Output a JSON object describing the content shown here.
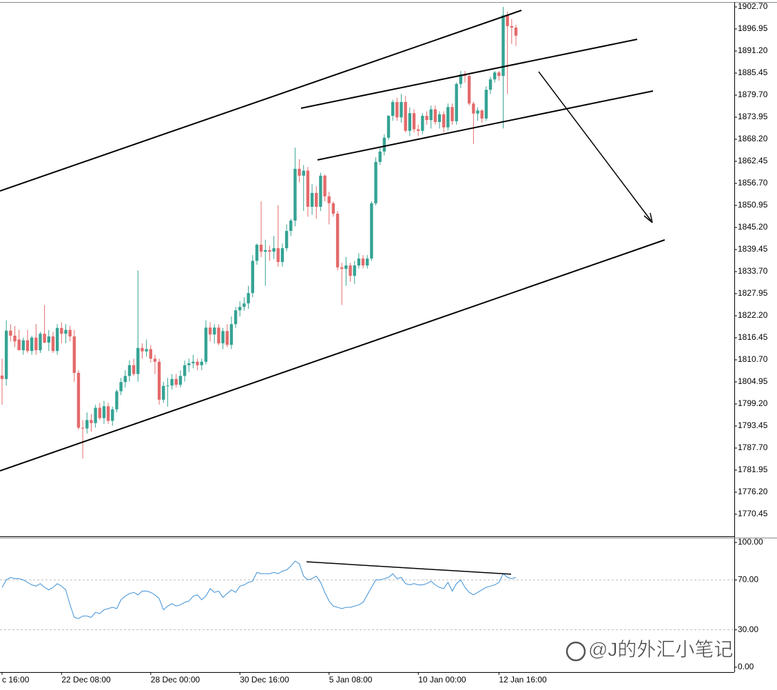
{
  "chart_data": [
    {
      "type": "candlestick",
      "categories": [
        "c 16:00",
        null,
        null,
        null,
        null,
        null,
        null,
        null,
        null,
        null,
        null,
        null,
        null,
        null,
        "22 Dec 08:00",
        null,
        null,
        null,
        null,
        null,
        null,
        null,
        null,
        null,
        null,
        null,
        null,
        null,
        null,
        null,
        null,
        null,
        null,
        null,
        null,
        "28 Dec 00:00",
        null,
        null,
        null,
        null,
        null,
        null,
        null,
        null,
        null,
        null,
        null,
        null,
        null,
        null,
        null,
        null,
        null,
        null,
        null,
        null,
        "30 Dec 16:00",
        null,
        null,
        null,
        null,
        null,
        null,
        null,
        null,
        null,
        null,
        null,
        null,
        null,
        null,
        null,
        null,
        null,
        null,
        null,
        null,
        "5 Jan 08:00",
        null,
        null,
        null,
        null,
        null,
        null,
        null,
        null,
        null,
        null,
        null,
        null,
        null,
        null,
        null,
        null,
        null,
        null,
        null,
        null,
        "10 Jan 00:00",
        null,
        null,
        null,
        null,
        null,
        null,
        null,
        null,
        null,
        null,
        null,
        null,
        null,
        null,
        null,
        null,
        null,
        null,
        "12 Jan 16:00",
        null,
        null,
        null
      ],
      "ohlc": [
        [
          1806.6,
          1811,
          1799,
          1805.7
        ],
        [
          1805.7,
          1821,
          1804,
          1818.3
        ],
        [
          1818.3,
          1820,
          1815.5,
          1817.0
        ],
        [
          1817.0,
          1819.5,
          1814,
          1815.5
        ],
        [
          1816.0,
          1818.5,
          1813.5,
          1813.2
        ],
        [
          1813.2,
          1816.5,
          1812,
          1815.8
        ],
        [
          1815.8,
          1818.5,
          1812.5,
          1813.0
        ],
        [
          1813.0,
          1817,
          1812,
          1816.5
        ],
        [
          1816.5,
          1820,
          1812,
          1813.2
        ],
        [
          1813.2,
          1818,
          1812.5,
          1817.5
        ],
        [
          1817.5,
          1825,
          1815,
          1815.2
        ],
        [
          1815.2,
          1818.5,
          1813,
          1816.8
        ],
        [
          1816.8,
          1818,
          1812.5,
          1813.0
        ],
        [
          1813.0,
          1820,
          1812,
          1819.0
        ],
        [
          1819.0,
          1820.5,
          1815,
          1817.5
        ],
        [
          1817.5,
          1820,
          1815,
          1818.5
        ],
        [
          1818.5,
          1819.5,
          1815.5,
          1816.8
        ],
        [
          1816.8,
          1818.5,
          1805,
          1807.3
        ],
        [
          1807.3,
          1808,
          1792.5,
          1793.0
        ],
        [
          1793.0,
          1795,
          1785,
          1792.8
        ],
        [
          1792.8,
          1797,
          1791.5,
          1795.0
        ],
        [
          1795.0,
          1796.5,
          1792,
          1794.2
        ],
        [
          1794.2,
          1799,
          1793,
          1798.2
        ],
        [
          1798.2,
          1799.5,
          1795,
          1795.5
        ],
        [
          1795.5,
          1800,
          1794,
          1798.6
        ],
        [
          1798.6,
          1799.5,
          1794,
          1794.8
        ],
        [
          1794.8,
          1798.5,
          1793.5,
          1797.8
        ],
        [
          1797.8,
          1803,
          1797,
          1802.5
        ],
        [
          1802.5,
          1806,
          1801.5,
          1804.9
        ],
        [
          1804.9,
          1808,
          1803.5,
          1806.5
        ],
        [
          1806.5,
          1810.5,
          1805,
          1809.3
        ],
        [
          1809.3,
          1811,
          1806.5,
          1807.0
        ],
        [
          1807.0,
          1834,
          1805,
          1813.8
        ],
        [
          1813.8,
          1815,
          1811,
          1812.9
        ],
        [
          1812.9,
          1816,
          1811.5,
          1813.5
        ],
        [
          1813.5,
          1814.5,
          1810,
          1811.0
        ],
        [
          1811.0,
          1812,
          1807,
          1810.2
        ],
        [
          1810.2,
          1811,
          1799,
          1800.3
        ],
        [
          1800.3,
          1805,
          1799.5,
          1803.9
        ],
        [
          1803.9,
          1806,
          1798.5,
          1804.0
        ],
        [
          1804.0,
          1807,
          1803,
          1805.7
        ],
        [
          1805.7,
          1807,
          1803.5,
          1804.2
        ],
        [
          1804.2,
          1808,
          1803.5,
          1806.5
        ],
        [
          1806.5,
          1810.5,
          1805,
          1809.3
        ],
        [
          1809.3,
          1811,
          1807.5,
          1809.8
        ],
        [
          1809.8,
          1812,
          1808.5,
          1810.2
        ],
        [
          1810.2,
          1811,
          1808,
          1809.3
        ],
        [
          1809.3,
          1811,
          1808,
          1810.2
        ],
        [
          1810.2,
          1821,
          1809.5,
          1819.1
        ],
        [
          1819.1,
          1820.5,
          1815.5,
          1817.3
        ],
        [
          1817.3,
          1820,
          1815,
          1819.1
        ],
        [
          1819.1,
          1820,
          1814.5,
          1815.0
        ],
        [
          1815.0,
          1819,
          1813.5,
          1818.2
        ],
        [
          1818.2,
          1820,
          1814,
          1814.6
        ],
        [
          1814.6,
          1822,
          1813.5,
          1820.0
        ],
        [
          1820.0,
          1824.5,
          1819,
          1823.6
        ],
        [
          1823.6,
          1826,
          1822,
          1824.5
        ],
        [
          1824.5,
          1827,
          1823.5,
          1825.4
        ],
        [
          1825.4,
          1830,
          1824,
          1828.1
        ],
        [
          1828.1,
          1838,
          1827,
          1836.5
        ],
        [
          1836.5,
          1841,
          1835.5,
          1840.7
        ],
        [
          1840.7,
          1852,
          1837.5,
          1838.9
        ],
        [
          1838.9,
          1842,
          1830,
          1839.3
        ],
        [
          1839.3,
          1840.5,
          1836.5,
          1838.9
        ],
        [
          1838.9,
          1843,
          1837,
          1839.8
        ],
        [
          1839.8,
          1851,
          1835,
          1836.2
        ],
        [
          1836.2,
          1841,
          1835,
          1839.8
        ],
        [
          1839.8,
          1846,
          1839,
          1844.3
        ],
        [
          1844.3,
          1847.5,
          1843,
          1847.0
        ],
        [
          1847.0,
          1866,
          1845.5,
          1860.5
        ],
        [
          1860.5,
          1863,
          1857,
          1858.7
        ],
        [
          1858.7,
          1861.5,
          1849.5,
          1860.0
        ],
        [
          1860.0,
          1861,
          1848,
          1850.6
        ],
        [
          1850.6,
          1856.5,
          1848.5,
          1854.2
        ],
        [
          1854.2,
          1856,
          1847.5,
          1850.6
        ],
        [
          1850.6,
          1859.5,
          1849.5,
          1858.7
        ],
        [
          1858.7,
          1859,
          1852,
          1853.3
        ],
        [
          1853.3,
          1854.5,
          1846,
          1851.5
        ],
        [
          1851.5,
          1852,
          1848,
          1848.8
        ],
        [
          1848.8,
          1849.5,
          1834,
          1834.8
        ],
        [
          1834.8,
          1836,
          1825,
          1834.4
        ],
        [
          1834.4,
          1837.5,
          1830,
          1835.3
        ],
        [
          1835.3,
          1836,
          1831,
          1832.6
        ],
        [
          1832.6,
          1836.5,
          1830.5,
          1835.3
        ],
        [
          1835.3,
          1838.5,
          1834.5,
          1837.1
        ],
        [
          1837.1,
          1838,
          1834.5,
          1835.3
        ],
        [
          1835.3,
          1838,
          1834.5,
          1837.1
        ],
        [
          1837.1,
          1852,
          1836.5,
          1851.5
        ],
        [
          1851.5,
          1863.5,
          1851,
          1862.3
        ],
        [
          1862.3,
          1866,
          1861.5,
          1865.0
        ],
        [
          1865.0,
          1869.5,
          1864,
          1868.6
        ],
        [
          1868.6,
          1874.5,
          1868,
          1874.3
        ],
        [
          1874.3,
          1878.5,
          1873,
          1877.9
        ],
        [
          1877.9,
          1879,
          1873,
          1873.9
        ],
        [
          1873.9,
          1880,
          1872.5,
          1877.9
        ],
        [
          1877.9,
          1879.5,
          1870,
          1870.4
        ],
        [
          1870.4,
          1876.5,
          1869,
          1875.0
        ],
        [
          1875.0,
          1876,
          1870,
          1870.8
        ],
        [
          1870.8,
          1872,
          1869,
          1870.4
        ],
        [
          1870.4,
          1875,
          1869.5,
          1874.3
        ],
        [
          1874.3,
          1875.5,
          1872,
          1873.2
        ],
        [
          1873.2,
          1877,
          1871,
          1876.0
        ],
        [
          1876.0,
          1877,
          1872,
          1872.7
        ],
        [
          1872.7,
          1875.5,
          1871,
          1874.7
        ],
        [
          1874.7,
          1875.5,
          1870,
          1871.3
        ],
        [
          1871.3,
          1877.5,
          1870.5,
          1876.6
        ],
        [
          1876.6,
          1877.5,
          1872,
          1872.9
        ],
        [
          1872.9,
          1883,
          1872,
          1882.6
        ],
        [
          1882.6,
          1886,
          1881.5,
          1885.1
        ],
        [
          1885.1,
          1886,
          1883,
          1884.7
        ],
        [
          1884.7,
          1885.5,
          1877,
          1877.5
        ],
        [
          1877.5,
          1878,
          1867,
          1874.9
        ],
        [
          1874.9,
          1876.5,
          1873,
          1875.7
        ],
        [
          1875.7,
          1876,
          1872.5,
          1873.6
        ],
        [
          1873.6,
          1882,
          1873,
          1881.1
        ],
        [
          1881.1,
          1884.5,
          1880,
          1883.8
        ],
        [
          1883.8,
          1886,
          1883,
          1885.6
        ],
        [
          1885.6,
          1886,
          1883.5,
          1884.7
        ],
        [
          1884.7,
          1902.7,
          1871,
          1900.5
        ],
        [
          1900.5,
          1901.5,
          1880,
          1897.7
        ],
        [
          1897.7,
          1899.5,
          1893,
          1897.3
        ],
        [
          1897.3,
          1898,
          1892.5,
          1895.2
        ]
      ],
      "up_color": "#35a394",
      "down_color": "#e46a6b",
      "ylim": [
        1764.7,
        1903.96
      ],
      "yticks": [
        {
          "value": 1902.7,
          "label": "1902.70"
        },
        {
          "value": 1896.95,
          "label": "1896.95"
        },
        {
          "value": 1891.2,
          "label": "1891.20"
        },
        {
          "value": 1885.45,
          "label": "1885.45"
        },
        {
          "value": 1879.7,
          "label": "1879.70"
        },
        {
          "value": 1873.95,
          "label": "1873.95"
        },
        {
          "value": 1868.2,
          "label": "1868.20"
        },
        {
          "value": 1862.45,
          "label": "1862.45"
        },
        {
          "value": 1856.7,
          "label": "1856.70"
        },
        {
          "value": 1850.95,
          "label": "1850.95"
        },
        {
          "value": 1845.2,
          "label": "1845.20"
        },
        {
          "value": 1839.45,
          "label": "1839.45"
        },
        {
          "value": 1833.7,
          "label": "1833.70"
        },
        {
          "value": 1827.95,
          "label": "1827.95"
        },
        {
          "value": 1822.2,
          "label": "1822.20"
        },
        {
          "value": 1816.45,
          "label": "1816.45"
        },
        {
          "value": 1810.7,
          "label": "1810.70"
        },
        {
          "value": 1804.95,
          "label": "1804.95"
        },
        {
          "value": 1799.2,
          "label": "1799.20"
        },
        {
          "value": 1793.45,
          "label": "1793.45"
        },
        {
          "value": 1787.7,
          "label": "1787.70"
        },
        {
          "value": 1781.95,
          "label": "1781.95"
        },
        {
          "value": 1776.2,
          "label": "1776.20"
        },
        {
          "value": 1770.45,
          "label": "1770.45"
        }
      ],
      "watermark": "@J的外汇小笔记"
    },
    {
      "type": "line",
      "values": [
        64,
        70,
        72,
        71,
        71,
        70,
        68,
        66,
        65,
        67,
        64,
        62,
        64,
        67,
        65,
        62,
        50,
        40,
        39,
        41,
        41,
        40,
        44,
        43,
        46,
        47,
        48,
        47,
        54,
        57,
        59,
        60,
        58,
        61,
        61,
        60,
        58,
        55,
        46,
        49,
        51,
        49,
        50,
        52,
        53,
        57,
        58,
        54,
        57,
        63,
        60,
        61,
        56,
        59,
        62,
        60,
        65,
        66,
        68,
        69,
        76,
        75,
        75,
        75,
        76,
        75,
        77,
        78,
        81,
        85,
        83,
        73,
        70,
        71,
        73,
        68,
        60,
        53,
        49,
        48,
        47,
        48,
        48,
        49,
        50,
        52,
        58,
        64,
        70,
        70,
        71,
        72,
        75,
        71,
        72,
        67,
        66,
        67,
        66,
        66,
        67,
        69,
        66,
        64,
        63,
        68,
        61,
        67,
        70,
        64,
        60,
        58,
        60,
        62,
        64,
        65,
        66,
        68,
        75,
        72,
        71,
        72
      ],
      "color": "#3d8fd6",
      "ylim": [
        -3.9,
        103.3
      ],
      "yticks": [
        {
          "value": 100,
          "label": "100.00"
        },
        {
          "value": 70,
          "label": "70.00"
        },
        {
          "value": 30,
          "label": "30.00"
        },
        {
          "value": 0,
          "label": "0.00"
        }
      ],
      "levels": [
        70,
        30
      ]
    }
  ]
}
